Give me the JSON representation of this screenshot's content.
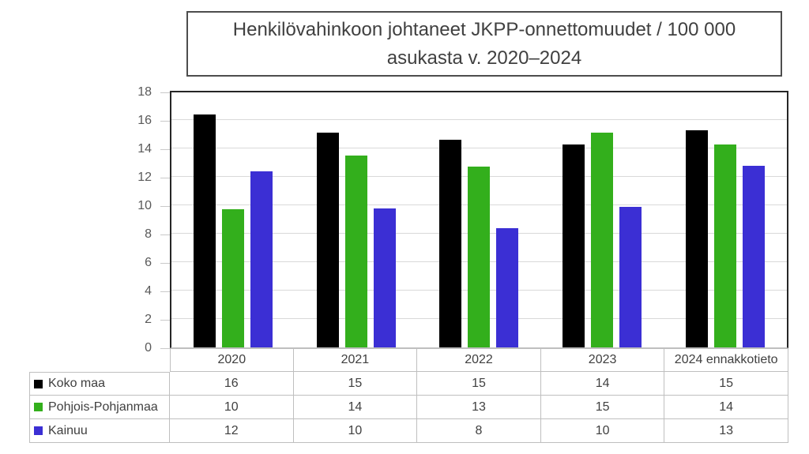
{
  "title": {
    "text": "Henkilövahinkoon johtaneet JKPP-onnettomuudet / 100 000 asukasta v. 2020–2024",
    "line1": "Henkilövahinkoon johtaneet JKPP-onnettomuudet / 100 000",
    "line2": "asukasta v. 2020–2024"
  },
  "chart_data": {
    "type": "bar",
    "title": "Henkilövahinkoon johtaneet JKPP-onnettomuudet / 100 000 asukasta v. 2020–2024",
    "categories": [
      "2020",
      "2021",
      "2022",
      "2023",
      "2024 ennakkotieto"
    ],
    "series": [
      {
        "name": "Koko maa",
        "color": "#000000",
        "values": [
          16.4,
          15.1,
          14.6,
          14.3,
          15.3
        ],
        "table_values": [
          16,
          15,
          15,
          14,
          15
        ]
      },
      {
        "name": "Pohjois-Pohjanmaa",
        "color": "#33AF1C",
        "values": [
          9.7,
          13.5,
          12.7,
          15.1,
          14.3
        ],
        "table_values": [
          10,
          14,
          13,
          15,
          14
        ]
      },
      {
        "name": "Kainuu",
        "color": "#3B2FD4",
        "values": [
          12.4,
          9.8,
          8.4,
          9.9,
          12.8
        ],
        "table_values": [
          12,
          10,
          8,
          10,
          13
        ]
      }
    ],
    "ylim": [
      0,
      18
    ],
    "yticks": [
      0,
      2,
      4,
      6,
      8,
      10,
      12,
      14,
      16,
      18
    ],
    "grid": true,
    "legend_position": "data-table-left-column",
    "colors": {
      "grid": "#D9D9D9",
      "plot_border": "#262626",
      "table_border": "#BFBFBF",
      "text": "#404040",
      "axis_text": "#595959"
    }
  }
}
